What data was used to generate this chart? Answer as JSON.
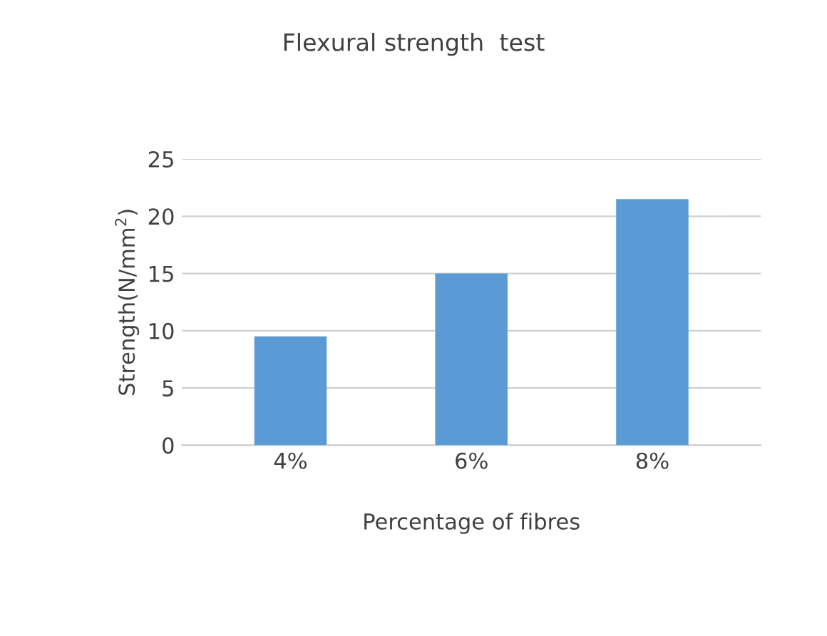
{
  "chart_data": {
    "type": "bar",
    "title": "Flexural strength  test",
    "categories": [
      "4%",
      "6%",
      "8%"
    ],
    "values": [
      9.5,
      15,
      21.5
    ],
    "color": "#5b9bd5",
    "xlabel": "Percentage of fibres",
    "ylabel": "Strength(N/mm$^{2}$)",
    "ylim": [
      0,
      25
    ],
    "yticks": [
      0,
      5,
      10,
      15,
      20,
      25
    ],
    "grid": "y",
    "legend": false
  }
}
